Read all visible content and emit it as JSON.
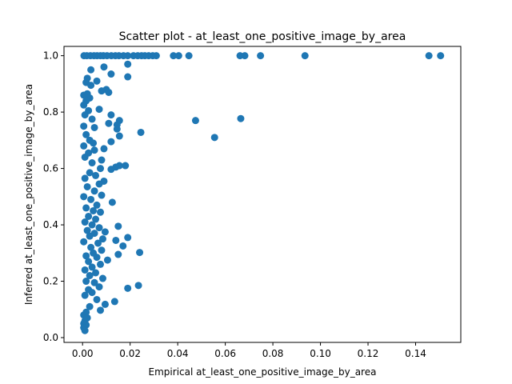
{
  "chart_data": {
    "type": "scatter",
    "title": "Scatter plot - at_least_one_positive_image_by_area",
    "xlabel": "Empirical at_least_one_positive_image_by_area",
    "ylabel": "Inferred at_least_one_positive_image_by_area",
    "xlim": [
      -0.0078,
      0.159
    ],
    "ylim": [
      -0.017,
      1.033
    ],
    "xticks": [
      0.0,
      0.02,
      0.04,
      0.06,
      0.08,
      0.1,
      0.12,
      0.14
    ],
    "xtick_labels": [
      "0.00",
      "0.02",
      "0.04",
      "0.06",
      "0.08",
      "0.10",
      "0.12",
      "0.14"
    ],
    "yticks": [
      0.0,
      0.2,
      0.4,
      0.6,
      0.8,
      1.0
    ],
    "ytick_labels": [
      "0.0",
      "0.2",
      "0.4",
      "0.6",
      "0.8",
      "1.0"
    ],
    "grid": false,
    "colors": {
      "marker": "#1f77b4",
      "axis": "#000000",
      "background": "#ffffff"
    },
    "points": [
      [
        0.1505,
        1.0
      ],
      [
        0.1456,
        1.0
      ],
      [
        0.0935,
        1.0
      ],
      [
        0.0748,
        1.0
      ],
      [
        0.0682,
        1.0
      ],
      [
        0.0662,
        1.0
      ],
      [
        0.0447,
        1.0
      ],
      [
        0.0404,
        1.0
      ],
      [
        0.0382,
        1.0
      ],
      [
        0.031,
        1.0
      ],
      [
        0.0295,
        1.0
      ],
      [
        0.0278,
        1.0
      ],
      [
        0.0262,
        1.0
      ],
      [
        0.0248,
        1.0
      ],
      [
        0.0232,
        1.0
      ],
      [
        0.0214,
        1.0
      ],
      [
        0.019,
        1.0
      ],
      [
        0.0172,
        1.0
      ],
      [
        0.0153,
        1.0
      ],
      [
        0.0138,
        1.0
      ],
      [
        0.0121,
        1.0
      ],
      [
        0.0103,
        1.0
      ],
      [
        0.0088,
        1.0
      ],
      [
        0.0075,
        1.0
      ],
      [
        0.0061,
        1.0
      ],
      [
        0.0048,
        1.0
      ],
      [
        0.0033,
        1.0
      ],
      [
        0.0018,
        1.0
      ],
      [
        0.0006,
        1.0
      ],
      [
        0.019,
        0.97
      ],
      [
        0.009,
        0.96
      ],
      [
        0.0035,
        0.95
      ],
      [
        0.012,
        0.935
      ],
      [
        0.019,
        0.925
      ],
      [
        0.002,
        0.92
      ],
      [
        0.006,
        0.91
      ],
      [
        0.0015,
        0.905
      ],
      [
        0.0035,
        0.895
      ],
      [
        0.01,
        0.88
      ],
      [
        0.008,
        0.875
      ],
      [
        0.011,
        0.87
      ],
      [
        0.002,
        0.865
      ],
      [
        0.0005,
        0.86
      ],
      [
        0.003,
        0.85
      ],
      [
        0.0015,
        0.84
      ],
      [
        0.007,
        0.81
      ],
      [
        0.0005,
        0.825
      ],
      [
        0.0025,
        0.805
      ],
      [
        0.001,
        0.79
      ],
      [
        0.012,
        0.79
      ],
      [
        0.004,
        0.775
      ],
      [
        0.0475,
        0.77
      ],
      [
        0.0665,
        0.777
      ],
      [
        0.0155,
        0.77
      ],
      [
        0.011,
        0.76
      ],
      [
        0.0145,
        0.755
      ],
      [
        0.0005,
        0.75
      ],
      [
        0.005,
        0.745
      ],
      [
        0.0145,
        0.74
      ],
      [
        0.0245,
        0.728
      ],
      [
        0.0555,
        0.71
      ],
      [
        0.0155,
        0.715
      ],
      [
        0.0015,
        0.72
      ],
      [
        0.003,
        0.7
      ],
      [
        0.012,
        0.695
      ],
      [
        0.0045,
        0.69
      ],
      [
        0.0005,
        0.68
      ],
      [
        0.009,
        0.67
      ],
      [
        0.005,
        0.665
      ],
      [
        0.0025,
        0.655
      ],
      [
        0.001,
        0.64
      ],
      [
        0.008,
        0.63
      ],
      [
        0.004,
        0.62
      ],
      [
        0.0155,
        0.61
      ],
      [
        0.018,
        0.61
      ],
      [
        0.014,
        0.605
      ],
      [
        0.0075,
        0.6
      ],
      [
        0.012,
        0.597
      ],
      [
        0.003,
        0.585
      ],
      [
        0.0055,
        0.575
      ],
      [
        0.001,
        0.565
      ],
      [
        0.009,
        0.555
      ],
      [
        0.007,
        0.545
      ],
      [
        0.002,
        0.535
      ],
      [
        0.005,
        0.52
      ],
      [
        0.008,
        0.505
      ],
      [
        0.0005,
        0.5
      ],
      [
        0.0035,
        0.49
      ],
      [
        0.0125,
        0.48
      ],
      [
        0.006,
        0.47
      ],
      [
        0.0015,
        0.46
      ],
      [
        0.0045,
        0.45
      ],
      [
        0.0075,
        0.445
      ],
      [
        0.0025,
        0.43
      ],
      [
        0.0055,
        0.42
      ],
      [
        0.001,
        0.41
      ],
      [
        0.004,
        0.4
      ],
      [
        0.015,
        0.395
      ],
      [
        0.007,
        0.39
      ],
      [
        0.002,
        0.38
      ],
      [
        0.0095,
        0.375
      ],
      [
        0.005,
        0.37
      ],
      [
        0.003,
        0.36
      ],
      [
        0.019,
        0.355
      ],
      [
        0.0085,
        0.35
      ],
      [
        0.014,
        0.345
      ],
      [
        0.0005,
        0.34
      ],
      [
        0.0065,
        0.335
      ],
      [
        0.017,
        0.325
      ],
      [
        0.0035,
        0.32
      ],
      [
        0.008,
        0.31
      ],
      [
        0.024,
        0.302
      ],
      [
        0.0045,
        0.3
      ],
      [
        0.015,
        0.295
      ],
      [
        0.0015,
        0.29
      ],
      [
        0.006,
        0.285
      ],
      [
        0.0105,
        0.275
      ],
      [
        0.0025,
        0.27
      ],
      [
        0.0075,
        0.26
      ],
      [
        0.004,
        0.25
      ],
      [
        0.001,
        0.24
      ],
      [
        0.0055,
        0.23
      ],
      [
        0.003,
        0.22
      ],
      [
        0.0085,
        0.21
      ],
      [
        0.0015,
        0.2
      ],
      [
        0.005,
        0.195
      ],
      [
        0.0235,
        0.185
      ],
      [
        0.007,
        0.18
      ],
      [
        0.019,
        0.175
      ],
      [
        0.0025,
        0.17
      ],
      [
        0.004,
        0.16
      ],
      [
        0.001,
        0.15
      ],
      [
        0.006,
        0.135
      ],
      [
        0.0135,
        0.128
      ],
      [
        0.0095,
        0.118
      ],
      [
        0.003,
        0.11
      ],
      [
        0.0075,
        0.097
      ],
      [
        0.0015,
        0.09
      ],
      [
        0.0005,
        0.08
      ],
      [
        0.002,
        0.07
      ],
      [
        0.001,
        0.06
      ],
      [
        0.0005,
        0.05
      ],
      [
        0.0015,
        0.045
      ],
      [
        0.0005,
        0.035
      ],
      [
        0.001,
        0.025
      ]
    ]
  }
}
